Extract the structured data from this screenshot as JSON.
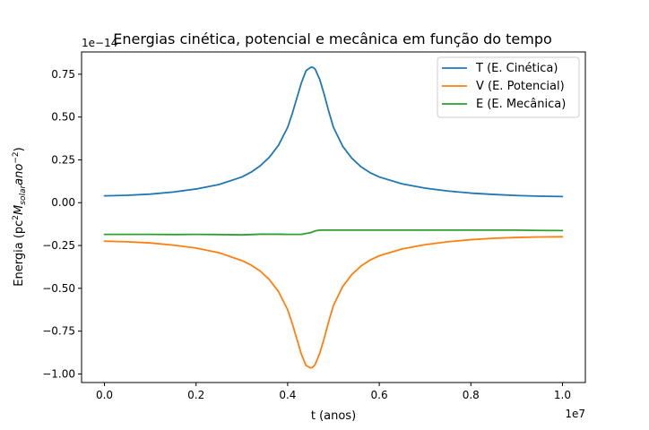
{
  "chart_data": {
    "type": "line",
    "title": "Energias cinética, potencial e mecânica em função do tempo",
    "xlabel": "t (anos)",
    "ylabel": "Energia (pc²M_solar ano⁻²)",
    "ylabel_main": "Energia (pc",
    "ylabel_sup1": "2",
    "ylabel_italic": "M",
    "ylabel_sub": "solar",
    "ylabel_italic2": "ano",
    "ylabel_sup2": "−2",
    "ylabel_close": ")",
    "x_offset_label": "1e7",
    "y_offset_label": "1e−14",
    "xlim": [
      -0.05,
      1.05
    ],
    "ylim": [
      -1.05,
      0.88
    ],
    "x_ticks": [
      0.0,
      0.2,
      0.4,
      0.6,
      0.8,
      1.0
    ],
    "x_tick_labels": [
      "0.0",
      "0.2",
      "0.4",
      "0.6",
      "0.8",
      "1.0"
    ],
    "y_ticks": [
      0.75,
      0.5,
      0.25,
      0.0,
      -0.25,
      -0.5,
      -0.75,
      -1.0
    ],
    "y_tick_labels": [
      "0.75",
      "0.50",
      "0.25",
      "0.00",
      "−0.25",
      "−0.50",
      "−0.75",
      "−1.00"
    ],
    "grid": false,
    "legend_position": "top-right",
    "x": [
      0.0,
      0.05,
      0.1,
      0.15,
      0.2,
      0.25,
      0.3,
      0.32,
      0.34,
      0.36,
      0.38,
      0.4,
      0.41,
      0.42,
      0.43,
      0.44,
      0.45,
      0.455,
      0.46,
      0.47,
      0.48,
      0.49,
      0.5,
      0.52,
      0.54,
      0.56,
      0.58,
      0.6,
      0.65,
      0.7,
      0.75,
      0.8,
      0.85,
      0.9,
      0.95,
      1.0
    ],
    "series": [
      {
        "name": "T (E. Cinética)",
        "color": "#1f77b4",
        "values": [
          0.04,
          0.043,
          0.05,
          0.062,
          0.08,
          0.106,
          0.15,
          0.178,
          0.215,
          0.265,
          0.335,
          0.44,
          0.52,
          0.61,
          0.7,
          0.77,
          0.79,
          0.79,
          0.78,
          0.72,
          0.63,
          0.53,
          0.44,
          0.33,
          0.26,
          0.21,
          0.175,
          0.15,
          0.11,
          0.085,
          0.068,
          0.056,
          0.048,
          0.042,
          0.038,
          0.036
        ]
      },
      {
        "name": "V (E. Potencial)",
        "color": "#ff7f0e",
        "values": [
          -0.225,
          -0.228,
          -0.235,
          -0.248,
          -0.265,
          -0.292,
          -0.338,
          -0.364,
          -0.399,
          -0.449,
          -0.519,
          -0.625,
          -0.705,
          -0.795,
          -0.885,
          -0.95,
          -0.965,
          -0.96,
          -0.945,
          -0.88,
          -0.79,
          -0.69,
          -0.6,
          -0.49,
          -0.42,
          -0.37,
          -0.335,
          -0.31,
          -0.27,
          -0.245,
          -0.228,
          -0.216,
          -0.208,
          -0.203,
          -0.2,
          -0.199
        ]
      },
      {
        "name": "E (E. Mecânica)",
        "color": "#2ca02c",
        "values": [
          -0.185,
          -0.185,
          -0.185,
          -0.186,
          -0.185,
          -0.186,
          -0.188,
          -0.186,
          -0.184,
          -0.184,
          -0.184,
          -0.185,
          -0.185,
          -0.185,
          -0.185,
          -0.18,
          -0.175,
          -0.17,
          -0.165,
          -0.16,
          -0.16,
          -0.16,
          -0.16,
          -0.16,
          -0.16,
          -0.16,
          -0.16,
          -0.16,
          -0.16,
          -0.16,
          -0.16,
          -0.16,
          -0.16,
          -0.16,
          -0.162,
          -0.163
        ]
      }
    ]
  }
}
